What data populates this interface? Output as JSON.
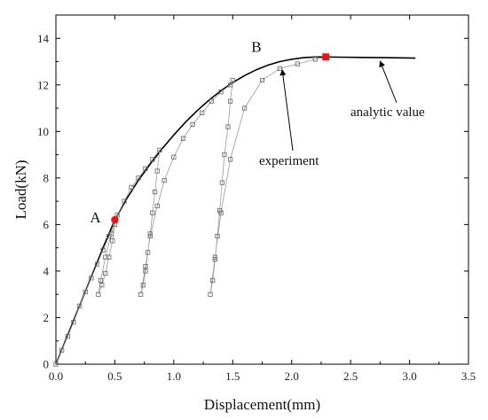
{
  "chart_data": {
    "type": "line",
    "title": "",
    "xlabel": "Displacement(mm)",
    "ylabel": "Load(kN)",
    "xlim": [
      0,
      3.5
    ],
    "ylim": [
      0,
      15
    ],
    "xticks": [
      "0.0",
      "0.5",
      "1.0",
      "1.5",
      "2.0",
      "2.5",
      "3.0",
      "3.5"
    ],
    "yticks": [
      "0",
      "2",
      "4",
      "6",
      "8",
      "10",
      "12",
      "14"
    ],
    "grid": false,
    "series": [
      {
        "name": "analytic value",
        "style": "solid-line",
        "color": "#000000",
        "x": [
          0.0,
          0.1,
          0.2,
          0.3,
          0.4,
          0.5,
          0.6,
          0.7,
          0.8,
          0.9,
          1.0,
          1.1,
          1.2,
          1.3,
          1.4,
          1.5,
          1.6,
          1.7,
          1.8,
          1.9,
          2.0,
          2.1,
          2.2,
          2.3,
          2.4,
          2.6,
          2.8,
          3.05
        ],
        "y": [
          0.0,
          1.25,
          2.5,
          3.75,
          5.0,
          6.2,
          7.1,
          7.9,
          8.6,
          9.25,
          9.85,
          10.4,
          10.9,
          11.35,
          11.75,
          12.1,
          12.4,
          12.65,
          12.85,
          13.0,
          13.1,
          13.17,
          13.2,
          13.2,
          13.19,
          13.18,
          13.17,
          13.15
        ]
      },
      {
        "name": "experiment",
        "style": "open-square-markers",
        "color": "#666666",
        "x": [
          0.0,
          0.05,
          0.1,
          0.15,
          0.2,
          0.25,
          0.3,
          0.35,
          0.4,
          0.45,
          0.5,
          0.48,
          0.45,
          0.42,
          0.39,
          0.36,
          0.38,
          0.42,
          0.47,
          0.52,
          0.58,
          0.64,
          0.7,
          0.76,
          0.82,
          0.88,
          0.86,
          0.84,
          0.82,
          0.8,
          0.78,
          0.76,
          0.74,
          0.72,
          0.76,
          0.8,
          0.86,
          0.92,
          1.0,
          1.08,
          1.16,
          1.24,
          1.32,
          1.4,
          1.48,
          1.5,
          1.48,
          1.46,
          1.43,
          1.41,
          1.39,
          1.37,
          1.35,
          1.33,
          1.31,
          1.35,
          1.4,
          1.48,
          1.6,
          1.75,
          1.9,
          2.05,
          2.2,
          2.3
        ],
        "y": [
          0.0,
          0.6,
          1.2,
          1.8,
          2.5,
          3.1,
          3.7,
          4.3,
          4.9,
          5.5,
          6.0,
          5.3,
          4.6,
          3.9,
          3.4,
          3.0,
          3.6,
          4.6,
          5.6,
          6.4,
          7.0,
          7.6,
          8.0,
          8.4,
          8.8,
          9.2,
          8.3,
          7.4,
          6.5,
          5.6,
          4.8,
          4.0,
          3.4,
          3.0,
          4.2,
          5.5,
          6.8,
          7.9,
          8.9,
          9.7,
          10.3,
          10.8,
          11.3,
          11.7,
          12.0,
          12.2,
          11.3,
          10.2,
          9.0,
          7.8,
          6.6,
          5.5,
          4.5,
          3.6,
          3.0,
          4.6,
          6.5,
          8.8,
          11.0,
          12.2,
          12.7,
          12.9,
          13.1,
          13.2
        ]
      }
    ],
    "key_points": [
      {
        "label": "A",
        "x": 0.5,
        "y": 6.2,
        "marker": "circle",
        "color": "#e8141b"
      },
      {
        "label": "B",
        "x": 2.29,
        "y": 13.2,
        "marker": "square",
        "color": "#e8141b"
      }
    ],
    "annotations": [
      {
        "text": "analytic value",
        "arrow_to_x": 2.75,
        "arrow_to_y": 13.17
      },
      {
        "text": "experiment",
        "arrow_to_x": 1.92,
        "arrow_to_y": 12.8
      }
    ]
  }
}
